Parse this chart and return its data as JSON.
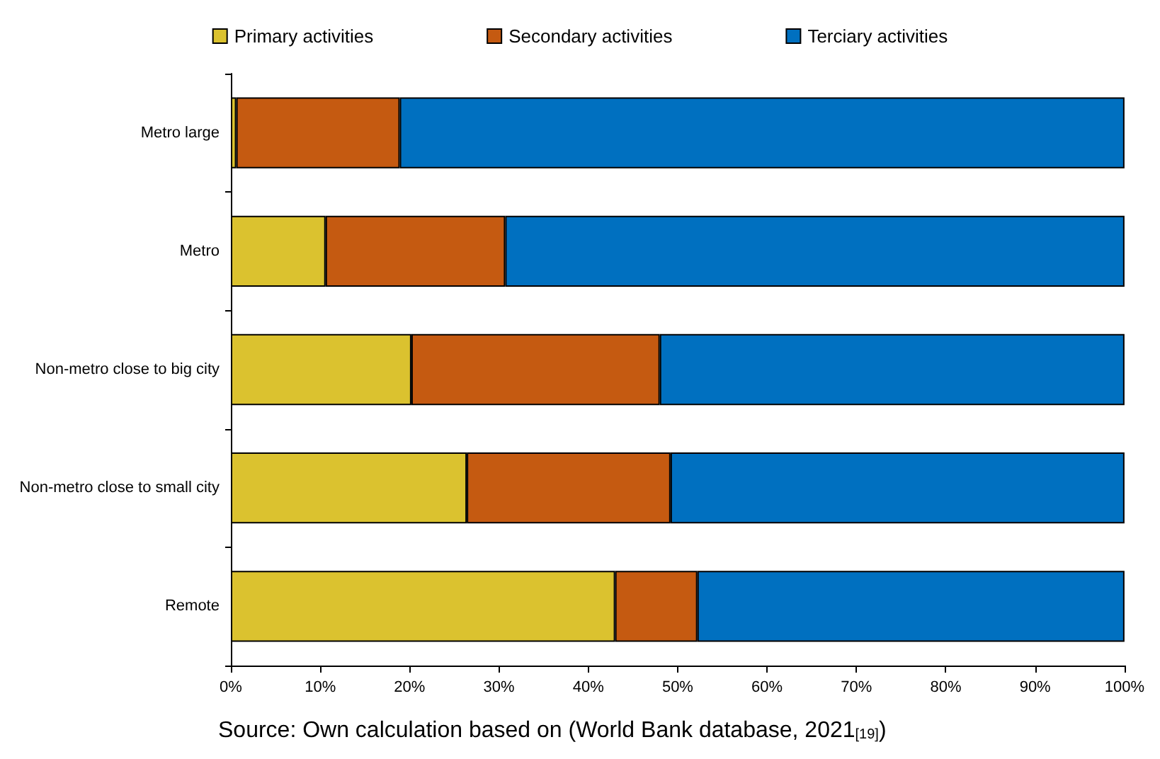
{
  "chart_data": {
    "type": "bar",
    "orientation": "horizontal",
    "stacked": true,
    "categories": [
      "Metro large",
      "Metro",
      "Non-metro close to big city",
      "Non-metro close to small city",
      "Remote"
    ],
    "series": [
      {
        "name": "Primary activities",
        "color": "#dbc22f",
        "values": [
          0.6,
          10.6,
          20.2,
          26.4,
          43.0
        ]
      },
      {
        "name": "Secondary activities",
        "color": "#c55a11",
        "values": [
          18.3,
          20.1,
          27.8,
          22.8,
          9.2
        ]
      },
      {
        "name": "Terciary activities",
        "color": "#0070c0",
        "values": [
          81.1,
          69.3,
          52.0,
          50.8,
          47.8
        ]
      }
    ],
    "xlim": [
      0,
      100
    ],
    "xticks": [
      {
        "value": 0,
        "label": "0%"
      },
      {
        "value": 10,
        "label": "10%"
      },
      {
        "value": 20,
        "label": "20%"
      },
      {
        "value": 30,
        "label": "30%"
      },
      {
        "value": 40,
        "label": "40%"
      },
      {
        "value": 50,
        "label": "50%"
      },
      {
        "value": 60,
        "label": "60%"
      },
      {
        "value": 70,
        "label": "70%"
      },
      {
        "value": 80,
        "label": "80%"
      },
      {
        "value": 90,
        "label": "90%"
      },
      {
        "value": 100,
        "label": "100%"
      }
    ],
    "grid": false,
    "legend": "top",
    "annotations": [
      "Source: Own calculation based on (World Bank database, 2021$_{[19]}$)"
    ]
  }
}
